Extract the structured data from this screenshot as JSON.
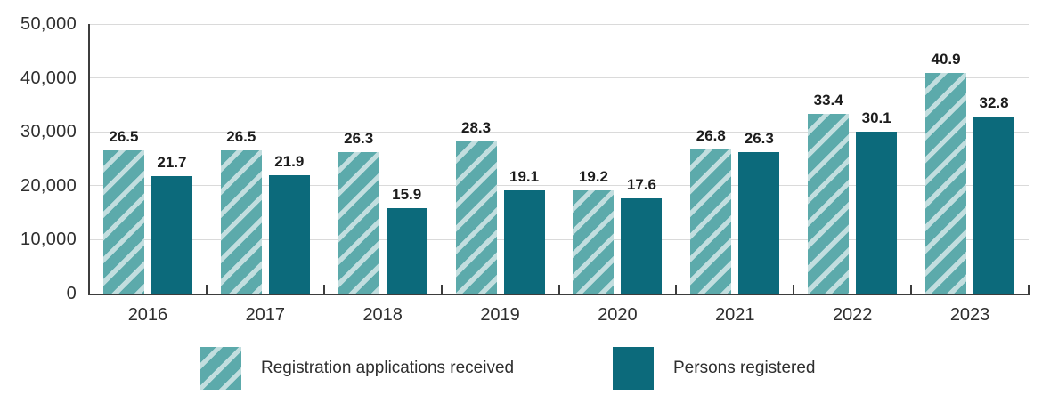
{
  "chart_data": {
    "type": "bar",
    "title": "",
    "xlabel": "",
    "ylabel": "",
    "categories": [
      "2016",
      "2017",
      "2018",
      "2019",
      "2020",
      "2021",
      "2022",
      "2023"
    ],
    "series": [
      {
        "name": "Registration applications received",
        "style": "hatched",
        "values": [
          26.5,
          26.5,
          26.3,
          28.3,
          19.2,
          26.8,
          33.4,
          40.9
        ]
      },
      {
        "name": "Persons registered",
        "style": "solid",
        "values": [
          21.7,
          21.9,
          15.9,
          19.1,
          17.6,
          26.3,
          30.1,
          32.8
        ]
      }
    ],
    "values_unit": "thousands",
    "data_labels": true,
    "y_axis": {
      "tick_labels": [
        "0",
        "10,000",
        "20,000",
        "30,000",
        "40,000",
        "50,000"
      ],
      "tick_values": [
        0,
        10000,
        20000,
        30000,
        40000,
        50000
      ],
      "max": 50000
    },
    "grid": "horizontal",
    "legend_position": "bottom",
    "colors": {
      "hatch_base": "#5caaab",
      "hatch_stripe": "#c2dedf",
      "solid_bar": "#0c6a7b",
      "axis_line": "#3d3d3d",
      "gridline": "#dadada",
      "text": "#2e2e2e",
      "value_label_text": "#1c1c1c"
    }
  },
  "legend": {
    "items": [
      {
        "label": "Registration applications received",
        "swatch": "hatched"
      },
      {
        "label": "Persons registered",
        "swatch": "solid"
      }
    ]
  }
}
